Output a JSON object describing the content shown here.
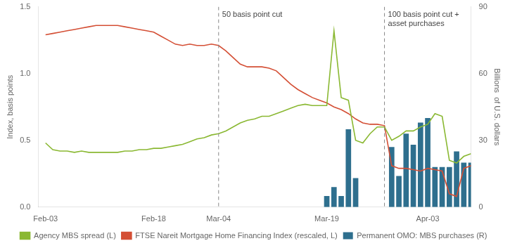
{
  "chart_data": {
    "type": "bar",
    "ylabel": "Index, basis points",
    "y2label": "Billions  of U.S. dollars",
    "xlim": [
      -1,
      59
    ],
    "xticks": [
      {
        "value": 0,
        "label": "Feb-03"
      },
      {
        "value": 15,
        "label": "Feb-18"
      },
      {
        "value": 24,
        "label": "Mar-04"
      },
      {
        "value": 39,
        "label": "Mar-19"
      },
      {
        "value": 53,
        "label": "Apr-03"
      }
    ],
    "ylim": [
      0.0,
      1.5
    ],
    "yticks": [
      {
        "value": 0,
        "label": "0.0"
      },
      0.5,
      {
        "value": 1,
        "label": "1.0"
      },
      1.5
    ],
    "y2lim": [
      0,
      90
    ],
    "y2ticks": [
      0,
      30,
      60,
      90
    ],
    "grid": false,
    "legend": "bottom",
    "annotations": [
      {
        "x": 24,
        "y": 1.47,
        "text": "50 basis point cut",
        "line_style": "dashed"
      },
      {
        "x": 47,
        "y": 1.47,
        "text": "100 basis point cut +\nasset purchases",
        "line_style": "dashed"
      }
    ],
    "series": [
      {
        "name": "Permanent OMO: MBS purchases (R)",
        "type": "bar",
        "axis": "y2",
        "color": "#2e6f8e",
        "x": [
          39,
          40,
          41,
          42,
          43,
          44,
          45,
          46,
          47,
          48,
          49,
          50,
          51,
          52,
          53,
          54,
          55,
          56,
          57,
          58,
          59
        ],
        "values": [
          5,
          9,
          5,
          35,
          13,
          0,
          0,
          0,
          0,
          27,
          14,
          33,
          28,
          38,
          40,
          18,
          18,
          18,
          25,
          20,
          20
        ]
      },
      {
        "name": "Agency MBS spread (L)",
        "type": "line",
        "color": "#8ab832",
        "x": [
          0,
          1,
          2,
          3,
          4,
          5,
          6,
          7,
          8,
          9,
          10,
          11,
          12,
          13,
          14,
          15,
          16,
          17,
          18,
          19,
          20,
          21,
          22,
          23,
          24,
          25,
          26,
          27,
          28,
          29,
          30,
          31,
          32,
          33,
          34,
          35,
          36,
          37,
          38,
          39,
          40,
          41,
          42,
          43,
          44,
          45,
          46,
          47,
          48,
          49,
          50,
          51,
          52,
          53,
          54,
          55,
          56,
          57,
          58,
          59
        ],
        "values": [
          0.48,
          0.43,
          0.42,
          0.42,
          0.41,
          0.42,
          0.41,
          0.41,
          0.41,
          0.41,
          0.41,
          0.42,
          0.42,
          0.43,
          0.43,
          0.44,
          0.44,
          0.45,
          0.46,
          0.47,
          0.49,
          0.51,
          0.52,
          0.54,
          0.55,
          0.57,
          0.6,
          0.63,
          0.65,
          0.66,
          0.68,
          0.68,
          0.7,
          0.72,
          0.74,
          0.76,
          0.77,
          0.76,
          0.76,
          0.76,
          1.32,
          0.82,
          0.8,
          0.5,
          0.48,
          0.55,
          0.6,
          0.6,
          0.5,
          0.53,
          0.57,
          0.57,
          0.6,
          0.62,
          0.7,
          0.68,
          0.35,
          0.33,
          0.38,
          0.4
        ]
      },
      {
        "name": "FTSE Nareit Mortgage Home Financing Index (rescaled, L)",
        "type": "line",
        "color": "#d44f35",
        "x": [
          0,
          1,
          2,
          3,
          4,
          5,
          6,
          7,
          8,
          9,
          10,
          11,
          12,
          13,
          14,
          15,
          16,
          17,
          18,
          19,
          20,
          21,
          22,
          23,
          24,
          25,
          26,
          27,
          28,
          29,
          30,
          31,
          32,
          33,
          34,
          35,
          36,
          37,
          38,
          39,
          40,
          41,
          42,
          43,
          44,
          45,
          46,
          47,
          48,
          49,
          50,
          51,
          52,
          53,
          54,
          55,
          56,
          57,
          58,
          59
        ],
        "values": [
          1.29,
          1.3,
          1.31,
          1.32,
          1.33,
          1.34,
          1.35,
          1.36,
          1.36,
          1.36,
          1.36,
          1.35,
          1.34,
          1.33,
          1.32,
          1.31,
          1.28,
          1.25,
          1.22,
          1.21,
          1.22,
          1.21,
          1.21,
          1.22,
          1.21,
          1.17,
          1.12,
          1.07,
          1.05,
          1.05,
          1.05,
          1.04,
          1.02,
          0.97,
          0.92,
          0.88,
          0.85,
          0.82,
          0.8,
          0.78,
          0.75,
          0.73,
          0.7,
          0.66,
          0.63,
          0.62,
          0.62,
          0.61,
          0.31,
          0.29,
          0.29,
          0.28,
          0.27,
          0.29,
          0.28,
          0.27,
          0.1,
          0.08,
          0.29,
          0.31
        ]
      }
    ]
  }
}
